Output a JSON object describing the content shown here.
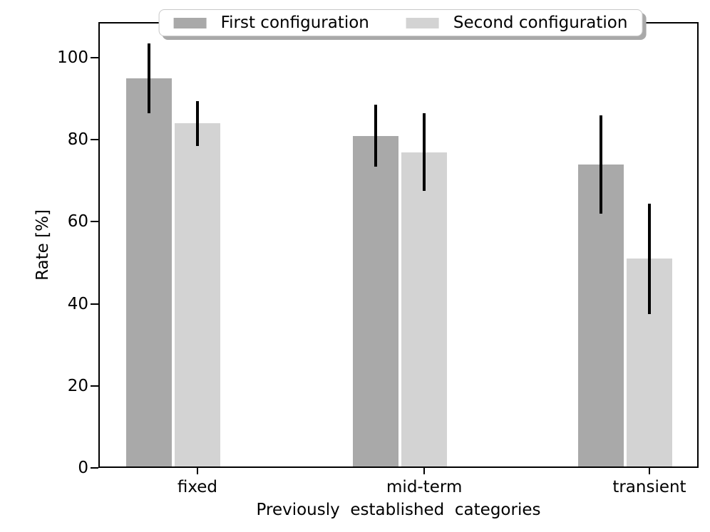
{
  "figure": {
    "background": "#ffffff",
    "text_color": "#000000",
    "spine_color": "#000000"
  },
  "chart_data": {
    "type": "bar",
    "title": "",
    "xlabel": "Previously  established  categories",
    "ylabel": "Rate [%]",
    "categories": [
      "fixed",
      "mid-term",
      "transient"
    ],
    "series": [
      {
        "name": "First configuration",
        "color": "#a9a9a9",
        "values": [
          95,
          81,
          74
        ],
        "errors": [
          8.5,
          7.5,
          12
        ]
      },
      {
        "name": "Second configuration",
        "color": "#d3d3d3",
        "values": [
          84,
          77,
          51
        ],
        "errors": [
          5.5,
          9.5,
          13.5
        ]
      }
    ],
    "ylim": [
      0,
      108.7
    ],
    "yticks": [
      0,
      20,
      40,
      60,
      80,
      100
    ],
    "grid": false,
    "legend_position": "upper center",
    "error_bar_color": "#000000"
  }
}
